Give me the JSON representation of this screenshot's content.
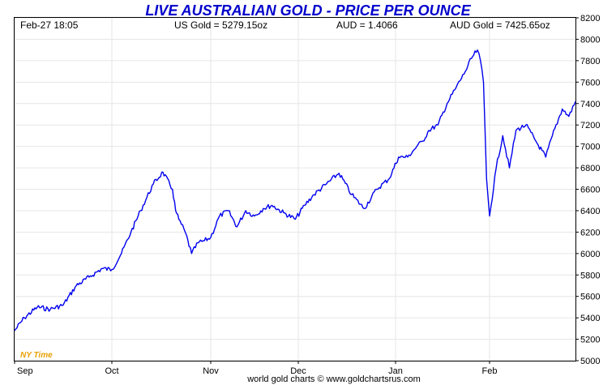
{
  "header": {
    "title": "LIVE AUSTRALIAN GOLD - PRICE PER OUNCE",
    "date_time": "Feb-27  18:05",
    "us_gold": "US Gold = 5279.15oz",
    "aud_rate": "AUD = 1.4066",
    "aud_gold": "AUD Gold = 7425.65oz"
  },
  "watermark": "NY Time",
  "footer": "world gold charts © www.goldchartsrus.com",
  "colors": {
    "line": "#0000ee",
    "title": "#0000cc",
    "grid": "#e6e6e6",
    "nytime": "#e8a000"
  },
  "chart_data": {
    "type": "line",
    "title": "LIVE AUSTRALIAN GOLD - PRICE PER OUNCE",
    "xlabel": "",
    "ylabel": "",
    "x_tick_labels": [
      "Sep",
      "Oct",
      "Nov",
      "Dec",
      "Jan",
      "Feb"
    ],
    "y_tick_labels": [
      "5000",
      "5200",
      "5400",
      "5600",
      "5800",
      "6000",
      "6200",
      "6400",
      "6600",
      "6800",
      "7000",
      "7200",
      "7400",
      "7600",
      "7800",
      "8000",
      "8200"
    ],
    "ylim": [
      5000,
      8200
    ],
    "y_axis_side": "right",
    "grid": true,
    "series": [
      {
        "name": "",
        "x": [
          "Sep 1",
          "Sep 4",
          "Sep 8",
          "Sep 12",
          "Sep 16",
          "Sep 20",
          "Sep 24",
          "Sep 28",
          "Oct 1",
          "Oct 4",
          "Oct 7",
          "Oct 10",
          "Oct 14",
          "Oct 17",
          "Oct 20",
          "Oct 21",
          "Oct 22",
          "Oct 24",
          "Oct 26",
          "Oct 28",
          "Oct 30",
          "Nov 1",
          "Nov 4",
          "Nov 7",
          "Nov 10",
          "Nov 13",
          "Nov 16",
          "Nov 19",
          "Nov 22",
          "Nov 26",
          "Nov 30",
          "Dec 3",
          "Dec 6",
          "Dec 10",
          "Dec 14",
          "Dec 18",
          "Dec 22",
          "Dec 26",
          "Dec 30",
          "Jan 2",
          "Jan 5",
          "Jan 8",
          "Jan 10",
          "Jan 12",
          "Jan 15",
          "Jan 18",
          "Jan 21",
          "Jan 24",
          "Jan 26",
          "Jan 28",
          "Jan 29",
          "Jan 30",
          "Jan 31",
          "Feb 1",
          "Feb 3",
          "Feb 5",
          "Feb 7",
          "Feb 9",
          "Feb 12",
          "Feb 15",
          "Feb 18",
          "Feb 20",
          "Feb 23",
          "Feb 25",
          "Feb 27"
        ],
        "y": [
          5280,
          5400,
          5500,
          5480,
          5520,
          5700,
          5780,
          5860,
          5850,
          6000,
          6200,
          6400,
          6650,
          6760,
          6600,
          6400,
          6320,
          6200,
          6000,
          6100,
          6120,
          6150,
          6350,
          6400,
          6250,
          6400,
          6350,
          6420,
          6450,
          6380,
          6320,
          6450,
          6550,
          6650,
          6750,
          6550,
          6420,
          6600,
          6700,
          6900,
          6900,
          7000,
          7050,
          7150,
          7200,
          7400,
          7550,
          7700,
          7820,
          7900,
          7800,
          7600,
          6700,
          6350,
          6800,
          7100,
          6800,
          7150,
          7200,
          7050,
          6900,
          7100,
          7350,
          7280,
          7420
        ]
      }
    ]
  }
}
